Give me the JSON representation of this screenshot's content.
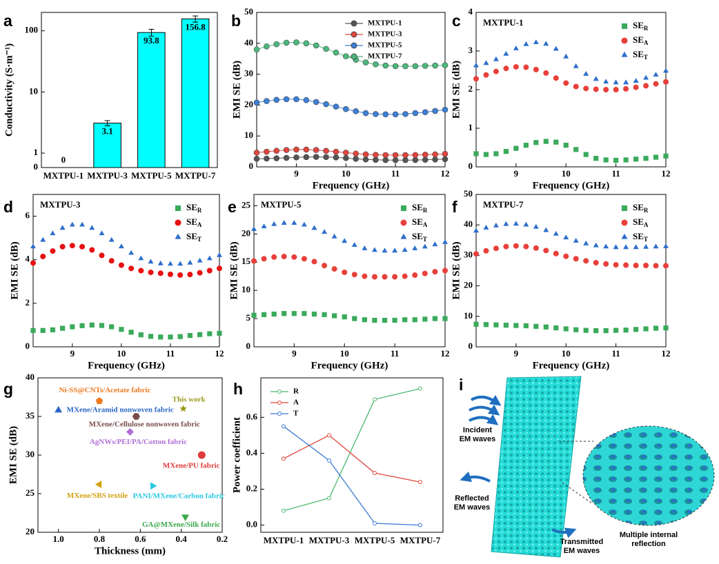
{
  "chart_data": [
    {
      "panel": "a",
      "type": "bar",
      "ylabel": "Conductivity (S·m⁻¹)",
      "categories": [
        "MXTPU-1",
        "MXTPU-3",
        "MXTPU-5",
        "MXTPU-7"
      ],
      "values": [
        0,
        3.1,
        93.8,
        156.8
      ],
      "errors": [
        0,
        0.3,
        12,
        18
      ],
      "color": "#00ffff",
      "yscale": "symlog",
      "ylim": [
        0,
        200
      ],
      "yticks": [
        0,
        1,
        10,
        100
      ]
    },
    {
      "panel": "b",
      "type": "line",
      "xlabel": "Frequency (GHz)",
      "ylabel": "EMI SE (dB)",
      "legend": "upper right",
      "x": [
        8.2,
        8.4,
        8.6,
        8.8,
        9.0,
        9.2,
        9.4,
        9.6,
        9.8,
        10.0,
        10.2,
        10.4,
        10.6,
        10.8,
        11.0,
        11.2,
        11.4,
        11.6,
        11.8,
        12.0
      ],
      "xlim": [
        8.2,
        12
      ],
      "xticks": [
        9,
        10,
        11,
        12
      ],
      "ylim": [
        0,
        50
      ],
      "yticks": [
        0,
        10,
        20,
        30,
        40,
        50
      ],
      "series": [
        {
          "name": "MXTPU-1",
          "color": "#555555",
          "values": [
            2.62,
            2.68,
            2.78,
            2.92,
            3.06,
            3.17,
            3.22,
            3.18,
            3.05,
            2.85,
            2.6,
            2.4,
            2.27,
            2.2,
            2.18,
            2.18,
            2.22,
            2.3,
            2.38,
            2.48
          ]
        },
        {
          "name": "MXTPU-3",
          "color": "#e0453e",
          "values": [
            4.6,
            4.9,
            5.2,
            5.45,
            5.6,
            5.6,
            5.45,
            5.2,
            4.9,
            4.6,
            4.3,
            4.05,
            3.9,
            3.82,
            3.8,
            3.8,
            3.85,
            3.95,
            4.05,
            4.2
          ]
        },
        {
          "name": "MXTPU-5",
          "color": "#3d7fd6",
          "values": [
            20.8,
            21.3,
            21.7,
            21.9,
            21.9,
            21.6,
            21.0,
            20.3,
            19.5,
            18.7,
            18.0,
            17.4,
            17.1,
            17.0,
            17.0,
            17.1,
            17.4,
            17.7,
            18.1,
            18.5
          ]
        },
        {
          "name": "MXTPU-7",
          "color": "#4cb87c",
          "values": [
            38,
            39,
            39.7,
            40.2,
            40.3,
            40,
            39.3,
            38.2,
            37,
            35.8,
            34.7,
            33.8,
            33.2,
            32.8,
            32.6,
            32.6,
            32.6,
            32.7,
            32.8,
            32.9
          ]
        }
      ]
    },
    {
      "panel": "c",
      "type": "scatter",
      "annotation": "MXTPU-1",
      "xlabel": "Frequency (GHz)",
      "ylabel": "EMI SE (dB)",
      "legend": "upper right",
      "x": [
        8.2,
        8.4,
        8.6,
        8.8,
        9.0,
        9.2,
        9.4,
        9.6,
        9.8,
        10.0,
        10.2,
        10.4,
        10.6,
        10.8,
        11.0,
        11.2,
        11.4,
        11.6,
        11.8,
        12.0
      ],
      "xlim": [
        8.2,
        12
      ],
      "xticks": [
        9,
        10,
        11,
        12
      ],
      "ylim": [
        0,
        4
      ],
      "yticks": [
        0,
        1,
        2,
        3,
        4
      ],
      "series": [
        {
          "name": "SER",
          "color": "#3aaa5c",
          "marker": "square",
          "values": [
            0.34,
            0.32,
            0.34,
            0.4,
            0.48,
            0.56,
            0.63,
            0.66,
            0.64,
            0.56,
            0.45,
            0.32,
            0.22,
            0.18,
            0.17,
            0.18,
            0.2,
            0.22,
            0.25,
            0.28
          ]
        },
        {
          "name": "SEA",
          "color": "#e8403a",
          "marker": "circle",
          "values": [
            2.28,
            2.38,
            2.47,
            2.55,
            2.59,
            2.58,
            2.52,
            2.43,
            2.3,
            2.17,
            2.08,
            2.03,
            2.01,
            2.0,
            2.0,
            2.02,
            2.06,
            2.1,
            2.15,
            2.2
          ]
        },
        {
          "name": "SET",
          "color": "#2f6fcc",
          "marker": "triangle",
          "values": [
            2.62,
            2.68,
            2.78,
            2.92,
            3.06,
            3.17,
            3.22,
            3.18,
            3.05,
            2.85,
            2.6,
            2.4,
            2.27,
            2.2,
            2.18,
            2.18,
            2.22,
            2.3,
            2.38,
            2.48
          ]
        }
      ]
    },
    {
      "panel": "d",
      "type": "scatter",
      "annotation": "MXTPU-3",
      "xlabel": "Frequency (GHz)",
      "ylabel": "EMI SE (dB)",
      "legend": "upper right",
      "x": [
        8.2,
        8.4,
        8.6,
        8.8,
        9.0,
        9.2,
        9.4,
        9.6,
        9.8,
        10.0,
        10.2,
        10.4,
        10.6,
        10.8,
        11.0,
        11.2,
        11.4,
        11.6,
        11.8,
        12.0
      ],
      "xlim": [
        8.2,
        12
      ],
      "xticks": [
        9,
        10,
        11,
        12
      ],
      "ylim": [
        0,
        7
      ],
      "yticks": [
        0,
        2,
        4,
        6
      ],
      "series": [
        {
          "name": "SER",
          "color": "#3aaa5c",
          "marker": "square",
          "values": [
            0.75,
            0.75,
            0.78,
            0.85,
            0.92,
            0.97,
            1.0,
            0.98,
            0.92,
            0.8,
            0.67,
            0.55,
            0.48,
            0.45,
            0.45,
            0.47,
            0.52,
            0.56,
            0.6,
            0.62
          ]
        },
        {
          "name": "SEA",
          "color": "#e81010",
          "marker": "circle",
          "values": [
            3.85,
            4.15,
            4.4,
            4.6,
            4.65,
            4.6,
            4.45,
            4.2,
            3.95,
            3.75,
            3.6,
            3.5,
            3.42,
            3.38,
            3.33,
            3.3,
            3.32,
            3.4,
            3.5,
            3.6
          ]
        },
        {
          "name": "SET",
          "color": "#2f6fcc",
          "marker": "triangle",
          "values": [
            4.6,
            4.9,
            5.2,
            5.45,
            5.6,
            5.6,
            5.45,
            5.2,
            4.9,
            4.6,
            4.3,
            4.05,
            3.9,
            3.82,
            3.8,
            3.8,
            3.85,
            3.95,
            4.05,
            4.2
          ]
        }
      ]
    },
    {
      "panel": "e",
      "type": "scatter",
      "annotation": "MXTPU-5",
      "xlabel": "Frequency (GHz)",
      "ylabel": "EMI SE (dB)",
      "legend": "upper right",
      "x": [
        8.2,
        8.4,
        8.6,
        8.8,
        9.0,
        9.2,
        9.4,
        9.6,
        9.8,
        10.0,
        10.2,
        10.4,
        10.6,
        10.8,
        11.0,
        11.2,
        11.4,
        11.6,
        11.8,
        12.0
      ],
      "xlim": [
        8.2,
        12
      ],
      "xticks": [
        9,
        10,
        11,
        12
      ],
      "ylim": [
        0,
        27
      ],
      "yticks": [
        0,
        5,
        10,
        15,
        20,
        25
      ],
      "series": [
        {
          "name": "SER",
          "color": "#3aaa5c",
          "marker": "square",
          "values": [
            5.6,
            5.7,
            5.8,
            5.9,
            5.9,
            5.9,
            5.8,
            5.7,
            5.5,
            5.3,
            5.0,
            4.8,
            4.7,
            4.7,
            4.7,
            4.8,
            4.8,
            4.9,
            5.0,
            5.0
          ]
        },
        {
          "name": "SEA",
          "color": "#e8403a",
          "marker": "circle",
          "values": [
            15.2,
            15.6,
            15.9,
            16.0,
            15.9,
            15.6,
            15.1,
            14.4,
            13.8,
            13.2,
            12.8,
            12.5,
            12.4,
            12.4,
            12.4,
            12.5,
            12.7,
            13.0,
            13.3,
            13.5
          ]
        },
        {
          "name": "SET",
          "color": "#2f6fcc",
          "marker": "triangle",
          "values": [
            20.8,
            21.3,
            21.7,
            21.9,
            21.9,
            21.6,
            21.0,
            20.3,
            19.5,
            18.7,
            18.0,
            17.4,
            17.1,
            17.0,
            17.0,
            17.1,
            17.4,
            17.7,
            18.1,
            18.5
          ]
        }
      ]
    },
    {
      "panel": "f",
      "type": "scatter",
      "annotation": "MXTPU-7",
      "xlabel": "Frequency (GHz)",
      "ylabel": "EMI SE (dB)",
      "legend": "upper right",
      "x": [
        8.2,
        8.4,
        8.6,
        8.8,
        9.0,
        9.2,
        9.4,
        9.6,
        9.8,
        10.0,
        10.2,
        10.4,
        10.6,
        10.8,
        11.0,
        11.2,
        11.4,
        11.6,
        11.8,
        12.0
      ],
      "xlim": [
        8.2,
        12
      ],
      "xticks": [
        9,
        10,
        11,
        12
      ],
      "ylim": [
        0,
        50
      ],
      "yticks": [
        0,
        10,
        20,
        30,
        40,
        50
      ],
      "series": [
        {
          "name": "SER",
          "color": "#3aaa5c",
          "marker": "square",
          "values": [
            7.4,
            7.3,
            7.2,
            7.1,
            7.0,
            6.9,
            6.7,
            6.5,
            6.2,
            5.9,
            5.6,
            5.4,
            5.3,
            5.3,
            5.4,
            5.5,
            5.7,
            5.9,
            6.1,
            6.2
          ]
        },
        {
          "name": "SEA",
          "color": "#e8403a",
          "marker": "circle",
          "values": [
            30.5,
            31.5,
            32.3,
            32.9,
            33.1,
            32.9,
            32.4,
            31.6,
            30.6,
            29.7,
            28.9,
            28.2,
            27.6,
            27.2,
            26.9,
            26.8,
            26.7,
            26.7,
            26.6,
            26.6
          ]
        },
        {
          "name": "SET",
          "color": "#2f6fcc",
          "marker": "triangle",
          "values": [
            38,
            39,
            39.7,
            40.2,
            40.3,
            40,
            39.3,
            38.2,
            37,
            35.8,
            34.7,
            33.8,
            33.2,
            32.8,
            32.6,
            32.6,
            32.6,
            32.7,
            32.8,
            32.9
          ]
        }
      ]
    },
    {
      "panel": "g",
      "type": "scatter",
      "xlabel": "Thickness (mm)",
      "ylabel": "EMI SE (dB)",
      "legend": "at points",
      "xlim": [
        1.1,
        0.2
      ],
      "xticks": [
        {
          "value": 1.0,
          "label": "1.0"
        },
        0.8,
        0.6,
        0.4,
        0.2
      ],
      "ylim": [
        20,
        40
      ],
      "yticks": [
        20,
        25,
        30,
        35,
        40
      ],
      "series": [
        {
          "name": "Ni-SS@CNTs/Acetate fabric",
          "color": "#f07a20",
          "marker": "pentagon",
          "x": [
            0.8
          ],
          "values": [
            37
          ]
        },
        {
          "name": "This work",
          "color": "#9a9a20",
          "marker": "star",
          "x": [
            0.39
          ],
          "values": [
            36
          ]
        },
        {
          "name": "MXene/Aramid nonwoven fabric",
          "color": "#2a66c8",
          "marker": "triangle",
          "x": [
            1.0
          ],
          "values": [
            35.8
          ]
        },
        {
          "name": "MXene/Cellulose nonwoven fabric",
          "color": "#7a4a4a",
          "marker": "hexagon",
          "x": [
            0.62
          ],
          "values": [
            35
          ]
        },
        {
          "name": "AgNWs/PEI/PA/Cotton fabric",
          "color": "#b06fd8",
          "marker": "diamond",
          "x": [
            0.65
          ],
          "values": [
            33
          ]
        },
        {
          "name": "MXene/PU fabric",
          "color": "#e03a3a",
          "marker": "circle",
          "x": [
            0.3
          ],
          "values": [
            30
          ]
        },
        {
          "name": "MXene/SBS textile",
          "color": "#d4a010",
          "marker": "triangle-left",
          "x": [
            0.8
          ],
          "values": [
            26.2
          ]
        },
        {
          "name": "PANI/MXene/Carbon fabric",
          "color": "#28c8e0",
          "marker": "triangle-right",
          "x": [
            0.54
          ],
          "values": [
            26
          ]
        },
        {
          "name": "GA@MXene/Silk fabric",
          "color": "#3aa84a",
          "marker": "triangle-down",
          "x": [
            0.38
          ],
          "values": [
            22
          ]
        }
      ]
    },
    {
      "panel": "h",
      "type": "line",
      "ylabel": "Power coefficient",
      "legend": "upper left",
      "categories": [
        "MXTPU-1",
        "MXTPU-3",
        "MXTPU-5",
        "MXTPU-7"
      ],
      "ylim": [
        -0.04,
        0.82
      ],
      "yticks": [
        {
          "value": 0,
          "label": "0.0"
        },
        0.2,
        0.4,
        0.6
      ],
      "series": [
        {
          "name": "R",
          "color": "#4bb86e",
          "values": [
            0.08,
            0.15,
            0.7,
            0.76
          ]
        },
        {
          "name": "A",
          "color": "#e0443a",
          "values": [
            0.37,
            0.5,
            0.29,
            0.24
          ]
        },
        {
          "name": "T",
          "color": "#3a78d4",
          "values": [
            0.55,
            0.36,
            0.01,
            0.0
          ]
        }
      ]
    }
  ],
  "diagram": {
    "panel": "i",
    "incident": [
      "Incident",
      "EM waves"
    ],
    "reflected": [
      "Reflected",
      "EM waves"
    ],
    "transmitted": [
      "Transmitted",
      "EM waves"
    ],
    "inset": [
      "Multiple internal",
      "reflection"
    ]
  }
}
